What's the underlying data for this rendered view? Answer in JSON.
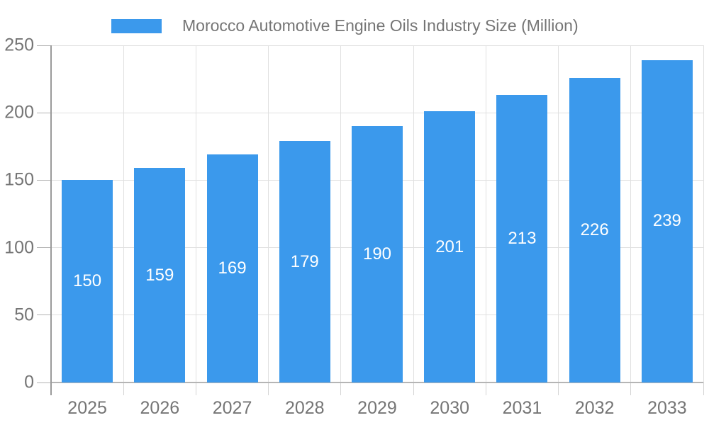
{
  "chart_data": {
    "type": "bar",
    "title": "Morocco Automotive Engine Oils Industry Size (Million)",
    "legend": {
      "position": "top",
      "entries": [
        "Morocco Automotive Engine Oils Industry Size (Million)"
      ]
    },
    "categories": [
      "2025",
      "2026",
      "2027",
      "2028",
      "2029",
      "2030",
      "2031",
      "2032",
      "2033"
    ],
    "series": [
      {
        "name": "Morocco Automotive Engine Oils Industry Size (Million)",
        "values": [
          150,
          159,
          169,
          179,
          190,
          201,
          213,
          226,
          239
        ]
      }
    ],
    "xlabel": "",
    "ylabel": "",
    "ylim": [
      0,
      250
    ],
    "yticks": [
      0,
      50,
      100,
      150,
      200,
      250
    ],
    "grid": true,
    "bar_value_labels": "inside-center",
    "colors": {
      "bar": "#3B99EC",
      "bar_value_text": "#FFFFFF",
      "axis_text": "#757575",
      "legend_text": "#757575",
      "gridline": "#E0E0E0",
      "axis_line": "#9A9A9A",
      "baseline": "#B5B5B5",
      "tick": "#B3B3B3",
      "tick_x": "#D4D4D4",
      "background": "#FFFFFF"
    }
  }
}
